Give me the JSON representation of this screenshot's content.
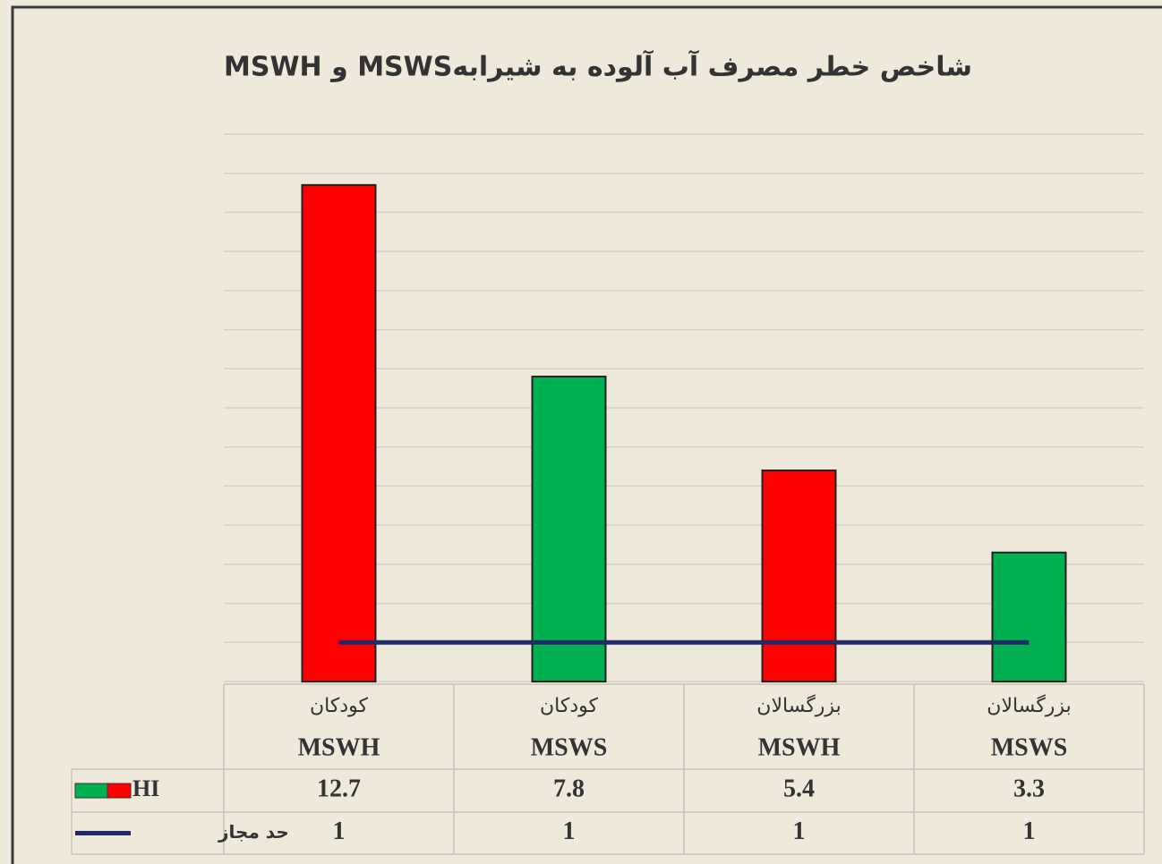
{
  "chart_data": {
    "type": "bar",
    "title": "شاخص خطر مصرف آب آلوده به شیرابهMSWS و  MSWH",
    "categories": [
      [
        "کودکان",
        "MSWH"
      ],
      [
        "کودکان",
        "MSWS"
      ],
      [
        "بزرگسالان",
        "MSWH"
      ],
      [
        "بزرگسالان",
        "MSWS"
      ]
    ],
    "series": [
      {
        "name": "HI",
        "type": "bar",
        "colors": [
          "#ff0000",
          "#00b050",
          "#ff0000",
          "#00b050"
        ],
        "values": [
          12.7,
          7.8,
          5.4,
          3.3
        ]
      },
      {
        "name": "حد مجاز",
        "type": "line",
        "color": "#1f2a66",
        "values": [
          1,
          1,
          1,
          1
        ]
      }
    ],
    "ylim": [
      0,
      14
    ],
    "yticks": [
      0,
      1,
      2,
      3,
      4,
      5,
      6,
      7,
      8,
      9,
      10,
      11,
      12,
      13,
      14
    ],
    "grid": true
  }
}
